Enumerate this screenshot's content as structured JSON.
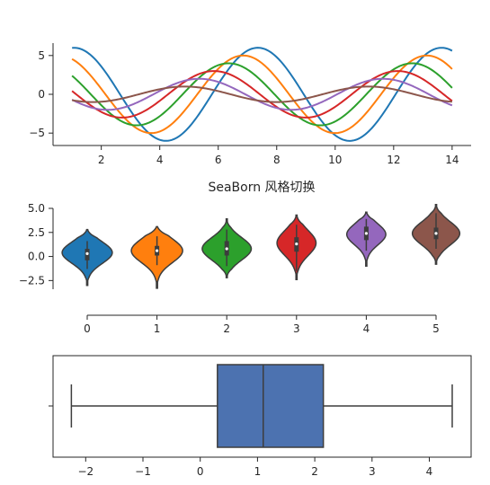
{
  "figure_title": "SeaBorn 风格切换",
  "chart_data": [
    {
      "type": "line",
      "title": "",
      "xlabel": "",
      "ylabel": "",
      "xlim": [
        0.35,
        14.65
      ],
      "ylim": [
        -6.6,
        6.6
      ],
      "xticks": [
        2,
        4,
        6,
        8,
        10,
        12,
        14
      ],
      "yticks": [
        -5,
        0,
        5
      ],
      "series_formula": "sin(x + i*0.5) * (7 - i) for i = 1..6, x in [1, 14]",
      "x_range": [
        1,
        14
      ],
      "series": [
        {
          "i": 1,
          "color": "#1f77b4"
        },
        {
          "i": 2,
          "color": "#ff7f0e"
        },
        {
          "i": 3,
          "color": "#2ca02c"
        },
        {
          "i": 4,
          "color": "#d62728"
        },
        {
          "i": 5,
          "color": "#9467bd"
        },
        {
          "i": 6,
          "color": "#8c564b"
        }
      ],
      "grid": false
    },
    {
      "type": "violin",
      "title": "SeaBorn 风格切换",
      "xlabel": "",
      "ylabel": "",
      "categories": [
        "0",
        "1",
        "2",
        "3",
        "4",
        "5"
      ],
      "ylim": [
        -3.4,
        5.0
      ],
      "yticks": [
        5.0,
        2.5,
        0.0,
        -2.5
      ],
      "ytick_labels": [
        "5.0",
        "2.5",
        "0.0",
        "−2.5"
      ],
      "colors": [
        "#1f77b4",
        "#ff7f0e",
        "#2ca02c",
        "#d62728",
        "#9467bd",
        "#8c564b"
      ],
      "violins": [
        {
          "category": "0",
          "min": -3.0,
          "max": 2.8,
          "q1": -0.4,
          "median": 0.3,
          "q3": 0.8,
          "whisker_low": -1.3,
          "whisker_high": 1.6,
          "mode": 0.4,
          "width": 0.9
        },
        {
          "category": "1",
          "min": -3.3,
          "max": 3.1,
          "q1": 0.1,
          "median": 0.6,
          "q3": 1.1,
          "whisker_low": -0.9,
          "whisker_high": 2.1,
          "mode": 0.6,
          "width": 0.92
        },
        {
          "category": "2",
          "min": -2.2,
          "max": 3.9,
          "q1": 0.1,
          "median": 0.8,
          "q3": 1.6,
          "whisker_low": -1.0,
          "whisker_high": 2.8,
          "mode": 0.8,
          "width": 0.88
        },
        {
          "category": "3",
          "min": -2.4,
          "max": 4.3,
          "q1": 0.5,
          "median": 1.3,
          "q3": 2.0,
          "whisker_low": -1.5,
          "whisker_high": 3.3,
          "mode": 1.4,
          "width": 0.7
        },
        {
          "category": "4",
          "min": -1.0,
          "max": 4.6,
          "q1": 1.7,
          "median": 2.4,
          "q3": 3.1,
          "whisker_low": 0.6,
          "whisker_high": 3.9,
          "mode": 2.3,
          "width": 0.7
        },
        {
          "category": "5",
          "min": -0.8,
          "max": 5.4,
          "q1": 1.8,
          "median": 2.4,
          "q3": 3.0,
          "whisker_low": 0.8,
          "whisker_high": 4.5,
          "mode": 2.4,
          "width": 0.85
        }
      ],
      "grid": false
    },
    {
      "type": "box",
      "title": "",
      "orientation": "horizontal",
      "xlim": [
        -2.57,
        4.73
      ],
      "xticks": [
        -2,
        -1,
        0,
        1,
        2,
        3,
        4
      ],
      "xtick_labels": [
        "−2",
        "−1",
        "0",
        "1",
        "2",
        "3",
        "4"
      ],
      "box": {
        "whisker_low": -2.25,
        "q1": 0.3,
        "median": 1.1,
        "q3": 2.15,
        "whisker_high": 4.4
      },
      "color": "#4c72b0",
      "grid": false
    }
  ]
}
